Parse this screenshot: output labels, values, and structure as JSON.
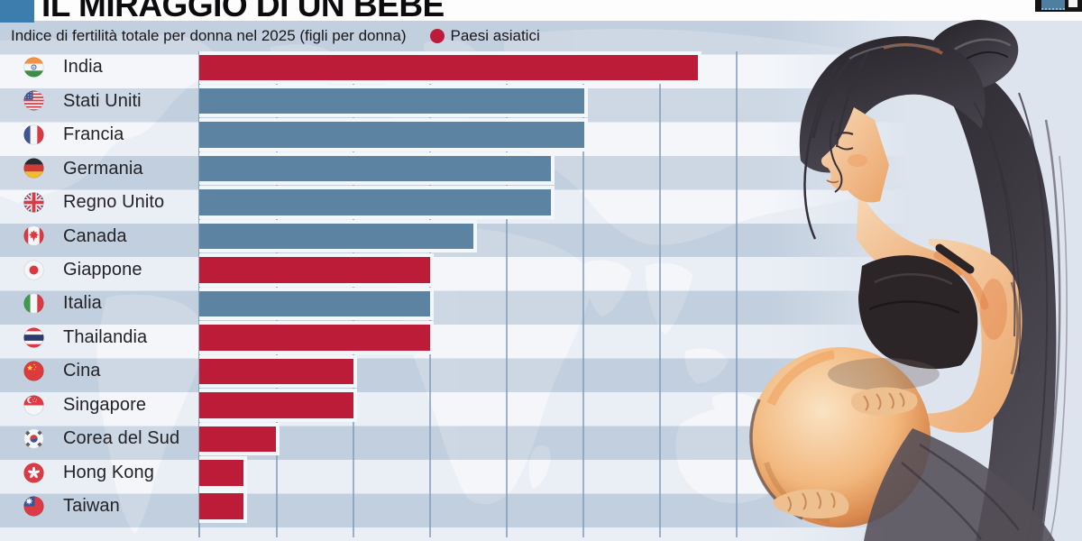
{
  "header": {
    "title": "IL MIRAGGIO DI UN BEBÈ",
    "subtitle": "Indice di fertilità totale per donna nel 2025 (figli per donna)",
    "legend_label": "Paesi asiatici"
  },
  "colors": {
    "asian_bar": "#bd1c38",
    "other_bar": "#5d83a2",
    "legend_dot": "#bd1c38",
    "title_square": "#3c7dad",
    "gridline": "#809bb8",
    "bar_outline": "#f4f7fa"
  },
  "chart_data": {
    "type": "bar",
    "orientation": "horizontal",
    "title": "IL MIRAGGIO DI UN BEBÈ",
    "subtitle": "Indice di fertilità totale per donna nel 2025 (figli per donna)",
    "legend": [
      {
        "label": "Paesi asiatici",
        "color": "#bd1c38"
      }
    ],
    "value_axis": {
      "tick_labels_visible": false,
      "vertical_gridlines": 7,
      "note": "axis is unlabeled; bar_units = bar length measured in gridline intervals; value_estimate = estimated children per woman"
    },
    "rows": [
      {
        "label": "India",
        "flag": "india",
        "asian": true,
        "bar_units": 6.47,
        "value_estimate": 1.95
      },
      {
        "label": "Stati Uniti",
        "flag": "usa",
        "asian": false,
        "bar_units": 5.0,
        "value_estimate": 1.6
      },
      {
        "label": "Francia",
        "flag": "france",
        "asian": false,
        "bar_units": 5.0,
        "value_estimate": 1.6
      },
      {
        "label": "Germania",
        "flag": "germany",
        "asian": false,
        "bar_units": 4.57,
        "value_estimate": 1.5
      },
      {
        "label": "Regno Unito",
        "flag": "uk",
        "asian": false,
        "bar_units": 4.57,
        "value_estimate": 1.5
      },
      {
        "label": "Canada",
        "flag": "canada",
        "asian": false,
        "bar_units": 3.56,
        "value_estimate": 1.3
      },
      {
        "label": "Giappone",
        "flag": "japan",
        "asian": true,
        "bar_units": 3.0,
        "value_estimate": 1.2
      },
      {
        "label": "Italia",
        "flag": "italy",
        "asian": false,
        "bar_units": 3.0,
        "value_estimate": 1.2
      },
      {
        "label": "Thailandia",
        "flag": "thailand",
        "asian": true,
        "bar_units": 3.0,
        "value_estimate": 1.2
      },
      {
        "label": "Cina",
        "flag": "china",
        "asian": true,
        "bar_units": 2.0,
        "value_estimate": 0.95
      },
      {
        "label": "Singapore",
        "flag": "singapore",
        "asian": true,
        "bar_units": 2.0,
        "value_estimate": 0.95
      },
      {
        "label": "Corea del Sud",
        "flag": "south-korea",
        "asian": true,
        "bar_units": 1.0,
        "value_estimate": 0.7
      },
      {
        "label": "Hong Kong",
        "flag": "hong-kong",
        "asian": true,
        "bar_units": 0.57,
        "value_estimate": 0.6
      },
      {
        "label": "Taiwan",
        "flag": "taiwan",
        "asian": true,
        "bar_units": 0.57,
        "value_estimate": 0.6
      }
    ]
  }
}
